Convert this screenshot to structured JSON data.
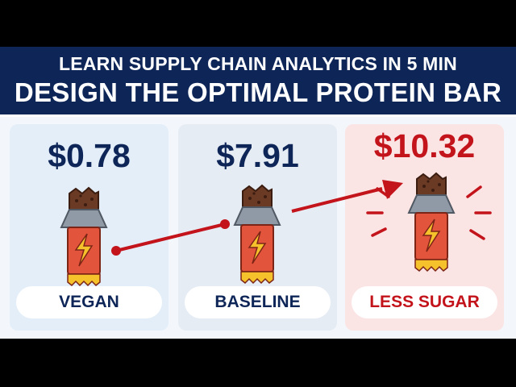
{
  "banner": {
    "line1": "LEARN SUPPLY CHAIN ANALYTICS IN 5 MIN",
    "line2": "DESIGN THE OPTIMAL PROTEIN BAR"
  },
  "options": [
    {
      "price": "$0.78",
      "label": "VEGAN",
      "highlight": false
    },
    {
      "price": "$7.91",
      "label": "BASELINE",
      "highlight": false
    },
    {
      "price": "$10.32",
      "label": "LESS SUGAR",
      "highlight": true
    }
  ],
  "colors": {
    "navy": "#0d2557",
    "accent_red": "#c3131b",
    "bar_orange": "#e3543c",
    "bolt_yellow": "#f6c22b"
  },
  "icons": [
    "protein-bar-icon",
    "lightning-bolt-icon",
    "trend-arrow",
    "burst-lines"
  ]
}
